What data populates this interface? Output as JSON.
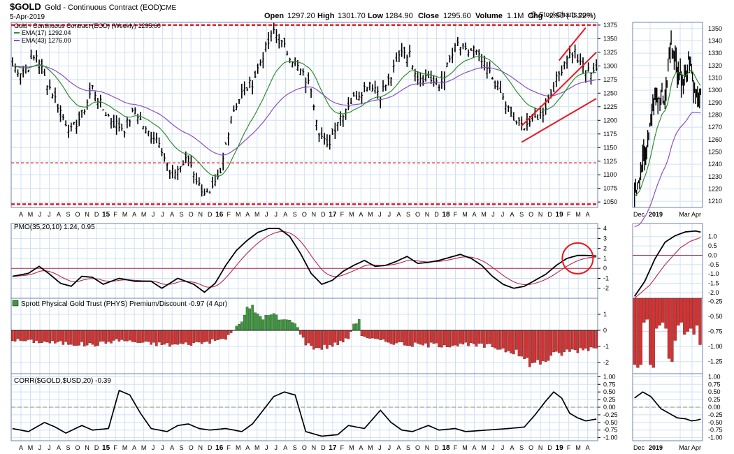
{
  "header": {
    "symbol": "$GOLD",
    "name": "Gold - Continuous Contract (EOD)",
    "exchange": "CME",
    "date": "5-Apr-2019",
    "open_label": "Open",
    "open": "1297.20",
    "high_label": "High",
    "high": "1301.70",
    "low_label": "Low",
    "low": "1284.90",
    "close_label": "Close",
    "close": "1295.60",
    "volume_label": "Volume",
    "volume": "1.1M",
    "chg_label": "Chg",
    "chg": "-2.90 (-0.22%)",
    "copyright": "@ StockCharts.com"
  },
  "colors": {
    "frame": "#6b86ad",
    "grid": "#cfe0f4",
    "ema17": "#2f8f2f",
    "ema43": "#8a4fc7",
    "signal": "#b5284b",
    "red_line": "#e8191f",
    "hist_up": "#3c9a3c",
    "hist_down": "#d93131"
  },
  "chart_data": [
    {
      "type": "line",
      "panel": "price",
      "title": "Gold - Continuous Contract (EOD) (Weekly) 1295.60",
      "legend": [
        {
          "name": "EMA(17) 1292.04",
          "color": "#2f8f2f"
        },
        {
          "name": "EMA(43) 1276.00",
          "color": "#8a4fc7"
        }
      ],
      "ylim": [
        1040,
        1380
      ],
      "yticks": [
        1050,
        1075,
        1100,
        1125,
        1150,
        1175,
        1200,
        1225,
        1250,
        1275,
        1300,
        1325,
        1350,
        1375
      ],
      "x_month_labels": [
        "A",
        "M",
        "J",
        "J",
        "A",
        "S",
        "O",
        "N",
        "D",
        "15",
        "F",
        "M",
        "A",
        "M",
        "J",
        "J",
        "A",
        "S",
        "O",
        "N",
        "D",
        "16",
        "F",
        "M",
        "A",
        "M",
        "J",
        "J",
        "A",
        "S",
        "O",
        "N",
        "D",
        "17",
        "F",
        "M",
        "A",
        "M",
        "J",
        "J",
        "A",
        "S",
        "O",
        "N",
        "D",
        "18",
        "F",
        "M",
        "A",
        "M",
        "J",
        "J",
        "A",
        "S",
        "O",
        "N",
        "D",
        "19",
        "F",
        "M",
        "A"
      ],
      "close_anchors": [
        [
          0,
          1300
        ],
        [
          3,
          1290
        ],
        [
          6,
          1300
        ],
        [
          9,
          1320
        ],
        [
          12,
          1280
        ],
        [
          16,
          1240
        ],
        [
          19,
          1205
        ],
        [
          22,
          1180
        ],
        [
          26,
          1210
        ],
        [
          30,
          1260
        ],
        [
          34,
          1220
        ],
        [
          38,
          1195
        ],
        [
          42,
          1185
        ],
        [
          46,
          1220
        ],
        [
          50,
          1180
        ],
        [
          55,
          1165
        ],
        [
          59,
          1100
        ],
        [
          63,
          1115
        ],
        [
          66,
          1130
        ],
        [
          70,
          1080
        ],
        [
          74,
          1060
        ],
        [
          78,
          1100
        ],
        [
          82,
          1210
        ],
        [
          86,
          1250
        ],
        [
          90,
          1270
        ],
        [
          94,
          1320
        ],
        [
          98,
          1365
        ],
        [
          101,
          1340
        ],
        [
          104,
          1320
        ],
        [
          108,
          1290
        ],
        [
          112,
          1260
        ],
        [
          115,
          1180
        ],
        [
          118,
          1150
        ],
        [
          122,
          1200
        ],
        [
          126,
          1230
        ],
        [
          130,
          1250
        ],
        [
          134,
          1270
        ],
        [
          138,
          1250
        ],
        [
          142,
          1280
        ],
        [
          146,
          1330
        ],
        [
          149,
          1320
        ],
        [
          152,
          1280
        ],
        [
          156,
          1280
        ],
        [
          160,
          1260
        ],
        [
          164,
          1310
        ],
        [
          167,
          1340
        ],
        [
          170,
          1325
        ],
        [
          173,
          1330
        ],
        [
          177,
          1300
        ],
        [
          181,
          1270
        ],
        [
          184,
          1240
        ],
        [
          188,
          1200
        ],
        [
          191,
          1190
        ],
        [
          195,
          1200
        ],
        [
          199,
          1215
        ],
        [
          202,
          1250
        ],
        [
          205,
          1285
        ],
        [
          208,
          1320
        ],
        [
          211,
          1325
        ],
        [
          213,
          1300
        ],
        [
          216,
          1290
        ],
        [
          219,
          1295.6
        ]
      ],
      "series": [
        {
          "name": "Gold weekly OHLC",
          "style": "ohlc"
        },
        {
          "name": "EMA(17)",
          "value_last": 1292.04
        },
        {
          "name": "EMA(43)",
          "value_last": 1276.0
        }
      ],
      "horizontal_lines": [
        1375,
        1122,
        1046
      ],
      "trendlines": [
        {
          "from": [
            191,
            1160
          ],
          "to": [
            219,
            1240
          ]
        },
        {
          "from": [
            191,
            1190
          ],
          "to": [
            219,
            1325
          ]
        },
        {
          "from": [
            205,
            1310
          ],
          "to": [
            215,
            1370
          ]
        }
      ],
      "inset": {
        "x_labels": [
          "Dec",
          "2019",
          "Mar",
          "Apr"
        ],
        "ylim": [
          1205,
          1355
        ],
        "yticks": [
          1210,
          1220,
          1230,
          1240,
          1250,
          1260,
          1270,
          1280,
          1290,
          1300,
          1310,
          1320,
          1330,
          1340,
          1350
        ],
        "close_anchors": [
          [
            0,
            1215
          ],
          [
            6,
            1235
          ],
          [
            12,
            1255
          ],
          [
            18,
            1285
          ],
          [
            24,
            1298
          ],
          [
            30,
            1290
          ],
          [
            36,
            1340
          ],
          [
            42,
            1315
          ],
          [
            48,
            1305
          ],
          [
            54,
            1325
          ],
          [
            60,
            1295
          ],
          [
            66,
            1295.6
          ]
        ]
      }
    },
    {
      "type": "line",
      "panel": "pmo",
      "title": "PMO(35,20,10) 1.24, 0.95",
      "ylim": [
        -3,
        4.5
      ],
      "yticks": [
        -2,
        -1,
        0,
        1,
        2,
        3,
        4
      ],
      "pmo_anchors": [
        [
          0,
          -0.8
        ],
        [
          6,
          -0.5
        ],
        [
          10,
          0.2
        ],
        [
          14,
          -0.6
        ],
        [
          18,
          -1.5
        ],
        [
          22,
          -1.8
        ],
        [
          26,
          -0.8
        ],
        [
          30,
          -0.9
        ],
        [
          34,
          -1.6
        ],
        [
          40,
          -1.0
        ],
        [
          46,
          -1.3
        ],
        [
          52,
          -1.3
        ],
        [
          56,
          -2.0
        ],
        [
          62,
          -1.0
        ],
        [
          68,
          -1.6
        ],
        [
          72,
          -2.4
        ],
        [
          76,
          -1.5
        ],
        [
          80,
          0.3
        ],
        [
          84,
          1.8
        ],
        [
          88,
          2.8
        ],
        [
          92,
          3.6
        ],
        [
          96,
          4.0
        ],
        [
          100,
          4.0
        ],
        [
          104,
          3.2
        ],
        [
          108,
          1.5
        ],
        [
          112,
          -0.5
        ],
        [
          116,
          -1.6
        ],
        [
          120,
          -1.2
        ],
        [
          124,
          -0.3
        ],
        [
          128,
          0.3
        ],
        [
          132,
          0.8
        ],
        [
          136,
          0.2
        ],
        [
          140,
          0.3
        ],
        [
          144,
          0.7
        ],
        [
          148,
          1.2
        ],
        [
          152,
          0.5
        ],
        [
          156,
          0.6
        ],
        [
          160,
          0.8
        ],
        [
          164,
          1.1
        ],
        [
          168,
          1.4
        ],
        [
          172,
          1.0
        ],
        [
          176,
          0.3
        ],
        [
          180,
          -0.8
        ],
        [
          184,
          -1.6
        ],
        [
          188,
          -2.0
        ],
        [
          192,
          -1.8
        ],
        [
          196,
          -1.2
        ],
        [
          200,
          -0.6
        ],
        [
          204,
          0.3
        ],
        [
          208,
          1.0
        ],
        [
          212,
          1.3
        ],
        [
          215,
          1.3
        ],
        [
          219,
          1.24
        ]
      ],
      "signal_last": 0.95,
      "inset": {
        "ylim": [
          -2.3,
          1.7
        ],
        "yticks": [
          -2.0,
          -1.5,
          -1.0,
          -0.5,
          0.0,
          0.5,
          1.0
        ]
      }
    },
    {
      "type": "bar",
      "panel": "phys",
      "title": "Sprott Physical Gold Trust (PHYS) Premium/Discount -0.97 (4 Apr)",
      "ylim": [
        -2.7,
        2.0
      ],
      "yticks": [
        -2,
        -1,
        0,
        1
      ],
      "anchors": [
        [
          0,
          -0.6
        ],
        [
          10,
          -0.7
        ],
        [
          20,
          -0.8
        ],
        [
          30,
          -0.9
        ],
        [
          40,
          -0.6
        ],
        [
          50,
          -0.8
        ],
        [
          60,
          -0.9
        ],
        [
          68,
          -0.8
        ],
        [
          74,
          -0.7
        ],
        [
          80,
          -0.5
        ],
        [
          84,
          0.2
        ],
        [
          86,
          0.6
        ],
        [
          88,
          1.3
        ],
        [
          90,
          1.4
        ],
        [
          92,
          1.0
        ],
        [
          94,
          0.8
        ],
        [
          96,
          0.9
        ],
        [
          98,
          1.0
        ],
        [
          100,
          0.7
        ],
        [
          104,
          0.6
        ],
        [
          106,
          0.5
        ],
        [
          108,
          -0.2
        ],
        [
          110,
          -0.8
        ],
        [
          114,
          -1.1
        ],
        [
          118,
          -1.0
        ],
        [
          122,
          -0.8
        ],
        [
          126,
          -0.5
        ],
        [
          128,
          0.4
        ],
        [
          130,
          0.6
        ],
        [
          131,
          -0.3
        ],
        [
          134,
          -0.5
        ],
        [
          140,
          -0.7
        ],
        [
          150,
          -0.9
        ],
        [
          160,
          -0.9
        ],
        [
          170,
          -0.9
        ],
        [
          180,
          -1.0
        ],
        [
          188,
          -1.3
        ],
        [
          192,
          -1.8
        ],
        [
          196,
          -2.1
        ],
        [
          200,
          -1.8
        ],
        [
          204,
          -1.5
        ],
        [
          208,
          -1.3
        ],
        [
          212,
          -1.2
        ],
        [
          216,
          -1.1
        ],
        [
          219,
          -0.97
        ]
      ],
      "inset": {
        "ylim": [
          -1.45,
          -0.2
        ],
        "yticks": [
          -0.25,
          -0.5,
          -0.75,
          -1.0,
          -1.25
        ]
      }
    },
    {
      "type": "line",
      "panel": "corr",
      "title": "CORR($GOLD,$USD,20) -0.39",
      "ylim": [
        -1.1,
        1.1
      ],
      "yticks": [
        1.0,
        0.75,
        0.5,
        0.25,
        0.0,
        -0.25,
        -0.5,
        -0.75,
        -1.0
      ],
      "anchors": [
        [
          0,
          -0.7
        ],
        [
          6,
          -0.8
        ],
        [
          12,
          -0.5
        ],
        [
          16,
          -0.65
        ],
        [
          20,
          -0.85
        ],
        [
          26,
          -0.6
        ],
        [
          30,
          -0.75
        ],
        [
          36,
          -0.7
        ],
        [
          40,
          0.55
        ],
        [
          44,
          0.4
        ],
        [
          48,
          -0.2
        ],
        [
          52,
          -0.7
        ],
        [
          58,
          -0.8
        ],
        [
          62,
          -0.6
        ],
        [
          66,
          -0.55
        ],
        [
          70,
          -0.7
        ],
        [
          74,
          -0.75
        ],
        [
          80,
          -0.7
        ],
        [
          86,
          -0.8
        ],
        [
          90,
          -0.55
        ],
        [
          94,
          -0.1
        ],
        [
          98,
          0.35
        ],
        [
          102,
          0.5
        ],
        [
          106,
          0.4
        ],
        [
          110,
          -0.8
        ],
        [
          116,
          -0.95
        ],
        [
          122,
          -0.9
        ],
        [
          126,
          -0.6
        ],
        [
          132,
          -0.7
        ],
        [
          138,
          -0.1
        ],
        [
          142,
          -0.5
        ],
        [
          146,
          -0.75
        ],
        [
          150,
          -0.8
        ],
        [
          156,
          -0.6
        ],
        [
          160,
          -0.75
        ],
        [
          166,
          -0.7
        ],
        [
          170,
          -0.8
        ],
        [
          178,
          -0.75
        ],
        [
          186,
          -0.7
        ],
        [
          192,
          -0.65
        ],
        [
          196,
          -0.25
        ],
        [
          200,
          0.2
        ],
        [
          203,
          0.5
        ],
        [
          206,
          0.3
        ],
        [
          209,
          -0.2
        ],
        [
          212,
          -0.35
        ],
        [
          215,
          -0.45
        ],
        [
          219,
          -0.39
        ]
      ]
    }
  ]
}
